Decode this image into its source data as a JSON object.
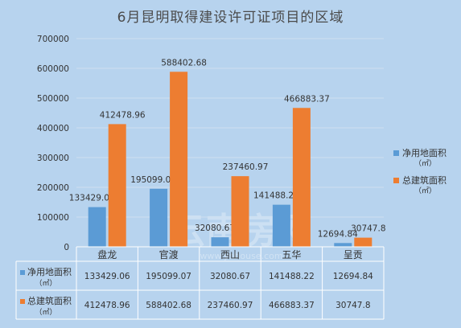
{
  "chart_data": {
    "type": "bar",
    "title": "6月昆明取得建设许可证项目的区域",
    "categories": [
      "盘龙",
      "官渡",
      "西山",
      "五华",
      "呈贡"
    ],
    "series": [
      {
        "name": "净用地面积",
        "unit": "（㎡）",
        "color": "#5b9bd5",
        "values": [
          133429.06,
          195099.07,
          32080.67,
          141488.22,
          12694.84
        ],
        "labels": [
          "133429.06",
          "195099.07",
          "32080.67",
          "141488.22",
          "12694.84"
        ]
      },
      {
        "name": "总建筑面积",
        "unit": "（㎡）",
        "color": "#ed7d31",
        "values": [
          412478.96,
          588402.68,
          237460.97,
          466883.37,
          30747.8
        ],
        "labels": [
          "412478.96",
          "588402.68",
          "237460.97",
          "466883.37",
          "30747.8"
        ]
      }
    ],
    "ylim": [
      0,
      700000
    ],
    "yticks": [
      "0",
      "100000",
      "200000",
      "300000",
      "400000",
      "500000",
      "600000",
      "700000"
    ],
    "grid": true,
    "legend_position": "right",
    "data_table": true,
    "watermark": "云南房网 www.ynhouse.com"
  }
}
